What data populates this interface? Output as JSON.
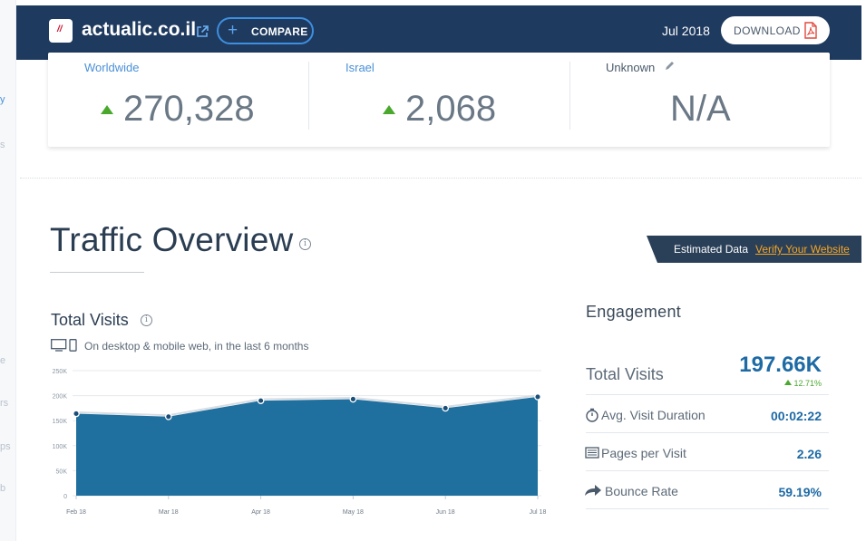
{
  "sidebar_fragments": [
    "y",
    "s",
    "e",
    "rs",
    "ps",
    "b"
  ],
  "header": {
    "logo_glyph": "//",
    "site_name": "actualic.co.il",
    "compare_label": "COMPARE",
    "date": "Jul 2018",
    "download_label": "DOWNLOAD"
  },
  "ranks": [
    {
      "title": "Worldwide",
      "value": "270,328",
      "trend": "up"
    },
    {
      "title": "Israel",
      "value": "2,068",
      "trend": "up"
    },
    {
      "title": "Unknown",
      "value": "N/A",
      "trend": "none"
    }
  ],
  "traffic_overview": {
    "title": "Traffic Overview",
    "estimated_label": "Estimated Data",
    "verify_link": "Verify Your Website"
  },
  "total_visits": {
    "title": "Total Visits",
    "subtitle": "On desktop & mobile web, in the last 6 months"
  },
  "chart_data": {
    "type": "area",
    "categories": [
      "Feb 18",
      "Mar 18",
      "Apr 18",
      "May 18",
      "Jun 18",
      "Jul 18"
    ],
    "values": [
      164000,
      158000,
      190000,
      193000,
      175000,
      197660
    ],
    "ylim": [
      0,
      250000
    ],
    "yticks": [
      "0",
      "50K",
      "100K",
      "150K",
      "200K",
      "250K"
    ],
    "grid": true,
    "color": "#1f6f9f"
  },
  "engagement": {
    "title": "Engagement",
    "total_visits_label": "Total Visits",
    "total_visits_value": "197.66K",
    "total_visits_change": "12.71%",
    "rows": [
      {
        "label": "Avg. Visit Duration",
        "value": "00:02:22",
        "icon": "stopwatch-icon"
      },
      {
        "label": "Pages per Visit",
        "value": "2.26",
        "icon": "pages-icon"
      },
      {
        "label": "Bounce Rate",
        "value": "59.19%",
        "icon": "bounce-arrow-icon"
      }
    ]
  },
  "colors": {
    "header_bg": "#1f3a5f",
    "accent_blue": "#1e6aa5",
    "link_orange": "#f6a623",
    "trend_green": "#4aa82f"
  }
}
